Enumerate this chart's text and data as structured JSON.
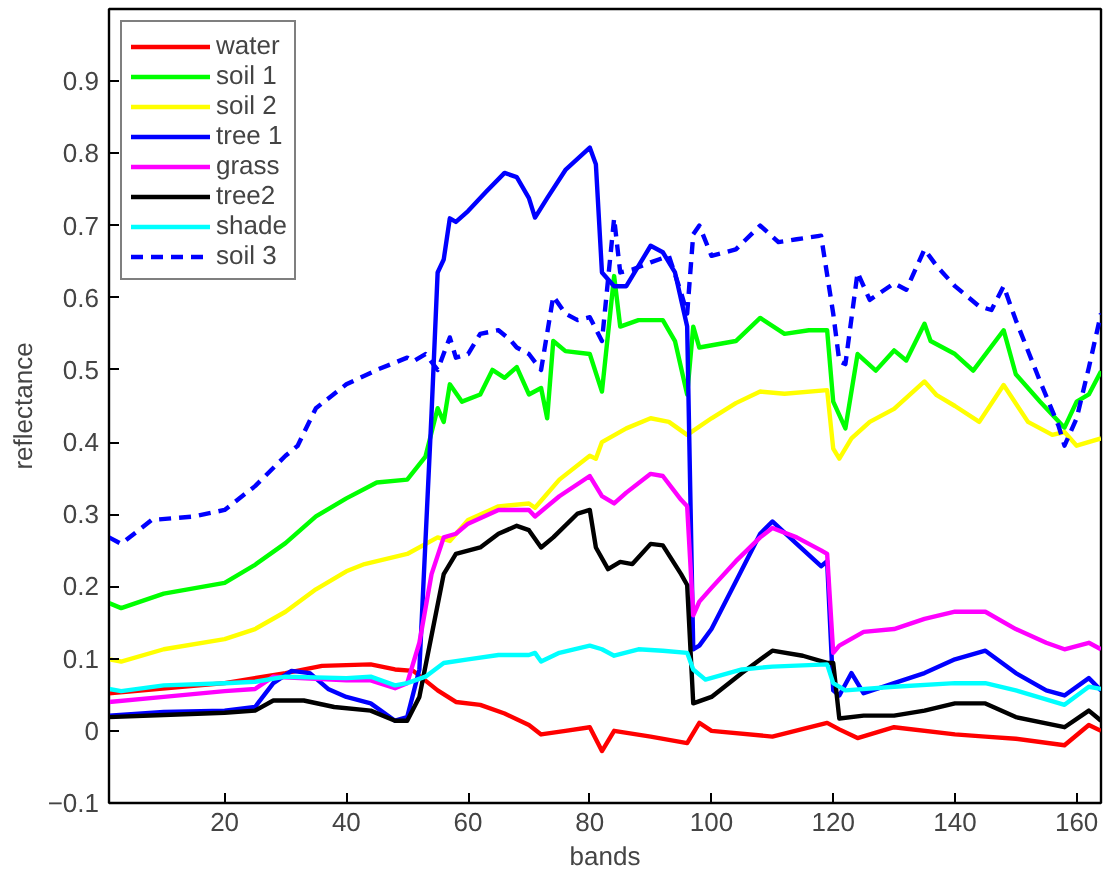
{
  "chart_data": {
    "type": "line",
    "xlabel": "bands",
    "ylabel": "reflectance",
    "xlim": [
      1,
      164
    ],
    "ylim": [
      -0.1,
      1.0
    ],
    "xticks": [
      20,
      40,
      60,
      80,
      100,
      120,
      140,
      160
    ],
    "yticks": [
      {
        "value": -0.1,
        "label": "−0.1"
      },
      0,
      0.1,
      0.2,
      0.3,
      0.4,
      0.5,
      0.6,
      0.7,
      0.8,
      0.9
    ],
    "grid": false,
    "legend": "top left",
    "line_style": "solid",
    "series": [
      {
        "name": "water",
        "color": "#ff0000",
        "x": [
          1,
          20,
          30,
          36,
          44,
          48,
          51,
          55,
          58,
          62,
          66,
          70,
          72,
          76,
          80,
          82,
          84,
          90,
          96,
          98,
          100,
          110,
          119,
          121,
          124,
          130,
          140,
          145,
          150,
          158,
          162,
          164
        ],
        "values": [
          0.052,
          0.066,
          0.08,
          0.09,
          0.092,
          0.085,
          0.083,
          0.056,
          0.04,
          0.036,
          0.024,
          0.008,
          -0.005,
          0,
          0.005,
          -0.028,
          0,
          -0.008,
          -0.017,
          0.011,
          0,
          -0.008,
          0.011,
          0.002,
          -0.01,
          0.005,
          -0.005,
          -0.008,
          -0.011,
          -0.02,
          0.008,
          0
        ]
      },
      {
        "name": "soil 1",
        "color": "#00ff00",
        "x": [
          1,
          3,
          10,
          20,
          25,
          30,
          35,
          40,
          45,
          50,
          53,
          55,
          56,
          57,
          59,
          62,
          64,
          66,
          68,
          70,
          72,
          73,
          74,
          76,
          80,
          82,
          84,
          85,
          88,
          92,
          94,
          96,
          97,
          98,
          104,
          108,
          112,
          116,
          119,
          120,
          122,
          124,
          127,
          130,
          132,
          135,
          136,
          140,
          143,
          148,
          150,
          154,
          158,
          160,
          162,
          164
        ],
        "values": [
          0.177,
          0.17,
          0.19,
          0.205,
          0.23,
          0.26,
          0.297,
          0.322,
          0.344,
          0.348,
          0.38,
          0.447,
          0.428,
          0.48,
          0.456,
          0.466,
          0.5,
          0.489,
          0.504,
          0.466,
          0.475,
          0.433,
          0.54,
          0.526,
          0.522,
          0.47,
          0.63,
          0.56,
          0.569,
          0.569,
          0.54,
          0.466,
          0.56,
          0.531,
          0.54,
          0.572,
          0.55,
          0.555,
          0.555,
          0.456,
          0.419,
          0.522,
          0.499,
          0.527,
          0.513,
          0.564,
          0.54,
          0.522,
          0.499,
          0.555,
          0.494,
          0.456,
          0.42,
          0.456,
          0.466,
          0.498
        ]
      },
      {
        "name": "soil 2",
        "color": "#ffff00",
        "x": [
          1,
          3,
          10,
          20,
          25,
          30,
          35,
          40,
          43,
          50,
          55,
          57,
          60,
          65,
          70,
          71,
          75,
          80,
          81,
          82,
          86,
          90,
          93,
          96,
          100,
          104,
          108,
          112,
          119,
          120,
          121,
          123,
          126,
          130,
          135,
          137,
          140,
          144,
          148,
          152,
          156,
          158,
          160,
          164
        ],
        "values": [
          0.099,
          0.096,
          0.113,
          0.127,
          0.141,
          0.165,
          0.196,
          0.221,
          0.231,
          0.245,
          0.268,
          0.263,
          0.292,
          0.311,
          0.315,
          0.309,
          0.348,
          0.381,
          0.377,
          0.4,
          0.419,
          0.433,
          0.428,
          0.41,
          0.433,
          0.454,
          0.47,
          0.467,
          0.472,
          0.391,
          0.377,
          0.405,
          0.428,
          0.446,
          0.484,
          0.465,
          0.45,
          0.428,
          0.479,
          0.428,
          0.41,
          0.414,
          0.395,
          0.405
        ]
      },
      {
        "name": "tree 1",
        "color": "#0000ff",
        "x": [
          1,
          10,
          20,
          25,
          28,
          31,
          34,
          37,
          40,
          44,
          48,
          50,
          52,
          54,
          55,
          56,
          57,
          58,
          60,
          63,
          66,
          68,
          70,
          71,
          73,
          76,
          80,
          81,
          82,
          84,
          86,
          90,
          92,
          94,
          96,
          97,
          98,
          100,
          104,
          108,
          110,
          114,
          118,
          119,
          120,
          121,
          123,
          125,
          130,
          135,
          140,
          145,
          150,
          155,
          158,
          162,
          164
        ],
        "values": [
          0.021,
          0.026,
          0.028,
          0.033,
          0.066,
          0.083,
          0.08,
          0.058,
          0.047,
          0.038,
          0.014,
          0.019,
          0.085,
          0.44,
          0.635,
          0.653,
          0.71,
          0.705,
          0.72,
          0.747,
          0.773,
          0.767,
          0.738,
          0.711,
          0.738,
          0.777,
          0.808,
          0.785,
          0.635,
          0.616,
          0.616,
          0.672,
          0.663,
          0.635,
          0.56,
          0.113,
          0.118,
          0.141,
          0.207,
          0.273,
          0.29,
          0.259,
          0.228,
          0.235,
          0.056,
          0.049,
          0.08,
          0.052,
          0.066,
          0.08,
          0.099,
          0.111,
          0.08,
          0.056,
          0.049,
          0.073,
          0.056
        ]
      },
      {
        "name": "grass",
        "color": "#ff00ff",
        "x": [
          1,
          10,
          20,
          25,
          28,
          35,
          40,
          44,
          48,
          50,
          52,
          54,
          56,
          58,
          60,
          65,
          70,
          71,
          75,
          80,
          81,
          82,
          84,
          86,
          90,
          92,
          95,
          96,
          97,
          98,
          100,
          104,
          108,
          110,
          114,
          118,
          119,
          120,
          121,
          125,
          130,
          135,
          140,
          145,
          150,
          155,
          158,
          162,
          164
        ],
        "values": [
          0.04,
          0.047,
          0.055,
          0.058,
          0.075,
          0.072,
          0.07,
          0.07,
          0.059,
          0.066,
          0.122,
          0.217,
          0.268,
          0.273,
          0.287,
          0.306,
          0.306,
          0.297,
          0.325,
          0.353,
          0.339,
          0.325,
          0.315,
          0.33,
          0.356,
          0.353,
          0.32,
          0.311,
          0.16,
          0.179,
          0.198,
          0.235,
          0.268,
          0.281,
          0.268,
          0.25,
          0.245,
          0.108,
          0.118,
          0.137,
          0.141,
          0.155,
          0.165,
          0.165,
          0.141,
          0.122,
          0.113,
          0.122,
          0.113
        ]
      },
      {
        "name": "tree2",
        "color": "#000000",
        "x": [
          1,
          10,
          20,
          25,
          28,
          33,
          38,
          44,
          48,
          50,
          52,
          54,
          56,
          58,
          62,
          65,
          68,
          70,
          72,
          74,
          78,
          80,
          81,
          83,
          85,
          87,
          90,
          92,
          95,
          96,
          97,
          100,
          105,
          110,
          115,
          119,
          120,
          121,
          125,
          130,
          135,
          140,
          145,
          150,
          158,
          162,
          164
        ],
        "values": [
          0.019,
          0.022,
          0.025,
          0.028,
          0.042,
          0.042,
          0.033,
          0.028,
          0.014,
          0.014,
          0.047,
          0.132,
          0.217,
          0.245,
          0.254,
          0.273,
          0.284,
          0.278,
          0.254,
          0.268,
          0.301,
          0.306,
          0.254,
          0.224,
          0.234,
          0.231,
          0.259,
          0.257,
          0.217,
          0.202,
          0.038,
          0.047,
          0.08,
          0.111,
          0.104,
          0.094,
          0.094,
          0.017,
          0.021,
          0.021,
          0.028,
          0.038,
          0.038,
          0.019,
          0.005,
          0.028,
          0.014
        ]
      },
      {
        "name": "shade",
        "color": "#00ffff",
        "x": [
          1,
          3,
          10,
          20,
          25,
          30,
          40,
          44,
          48,
          50,
          53,
          56,
          60,
          65,
          70,
          71,
          72,
          75,
          80,
          82,
          84,
          88,
          92,
          96,
          97,
          99,
          105,
          110,
          119,
          120,
          122,
          130,
          140,
          145,
          150,
          158,
          162,
          164
        ],
        "values": [
          0.058,
          0.055,
          0.063,
          0.066,
          0.068,
          0.075,
          0.073,
          0.075,
          0.063,
          0.066,
          0.075,
          0.094,
          0.099,
          0.105,
          0.105,
          0.108,
          0.096,
          0.108,
          0.118,
          0.113,
          0.104,
          0.113,
          0.111,
          0.108,
          0.085,
          0.071,
          0.085,
          0.089,
          0.092,
          0.066,
          0.056,
          0.061,
          0.066,
          0.066,
          0.056,
          0.036,
          0.061,
          0.058
        ]
      },
      {
        "name": "soil 3",
        "color": "#0000ff",
        "line_style": "dashed",
        "x": [
          1,
          3,
          8,
          15,
          20,
          25,
          30,
          32,
          35,
          40,
          45,
          50,
          51,
          53,
          55,
          57,
          58,
          60,
          62,
          65,
          67,
          68,
          70,
          72,
          74,
          76,
          78,
          80,
          82,
          84,
          85,
          87,
          90,
          93,
          95,
          96,
          97,
          98,
          100,
          104,
          108,
          111,
          114,
          118,
          120,
          121,
          122,
          124,
          126,
          130,
          132,
          135,
          137,
          140,
          144,
          146,
          148,
          150,
          154,
          157,
          158,
          160,
          162,
          164
        ],
        "values": [
          0.268,
          0.259,
          0.292,
          0.297,
          0.306,
          0.339,
          0.381,
          0.395,
          0.447,
          0.48,
          0.5,
          0.517,
          0.512,
          0.522,
          0.5,
          0.545,
          0.517,
          0.522,
          0.55,
          0.555,
          0.541,
          0.531,
          0.522,
          0.5,
          0.602,
          0.578,
          0.569,
          0.573,
          0.54,
          0.71,
          0.635,
          0.639,
          0.649,
          0.658,
          0.607,
          0.578,
          0.688,
          0.7,
          0.658,
          0.667,
          0.7,
          0.677,
          0.681,
          0.686,
          0.578,
          0.512,
          0.508,
          0.635,
          0.597,
          0.62,
          0.611,
          0.667,
          0.644,
          0.616,
          0.588,
          0.583,
          0.616,
          0.569,
          0.484,
          0.423,
          0.395,
          0.433,
          0.503,
          0.578
        ]
      }
    ]
  }
}
